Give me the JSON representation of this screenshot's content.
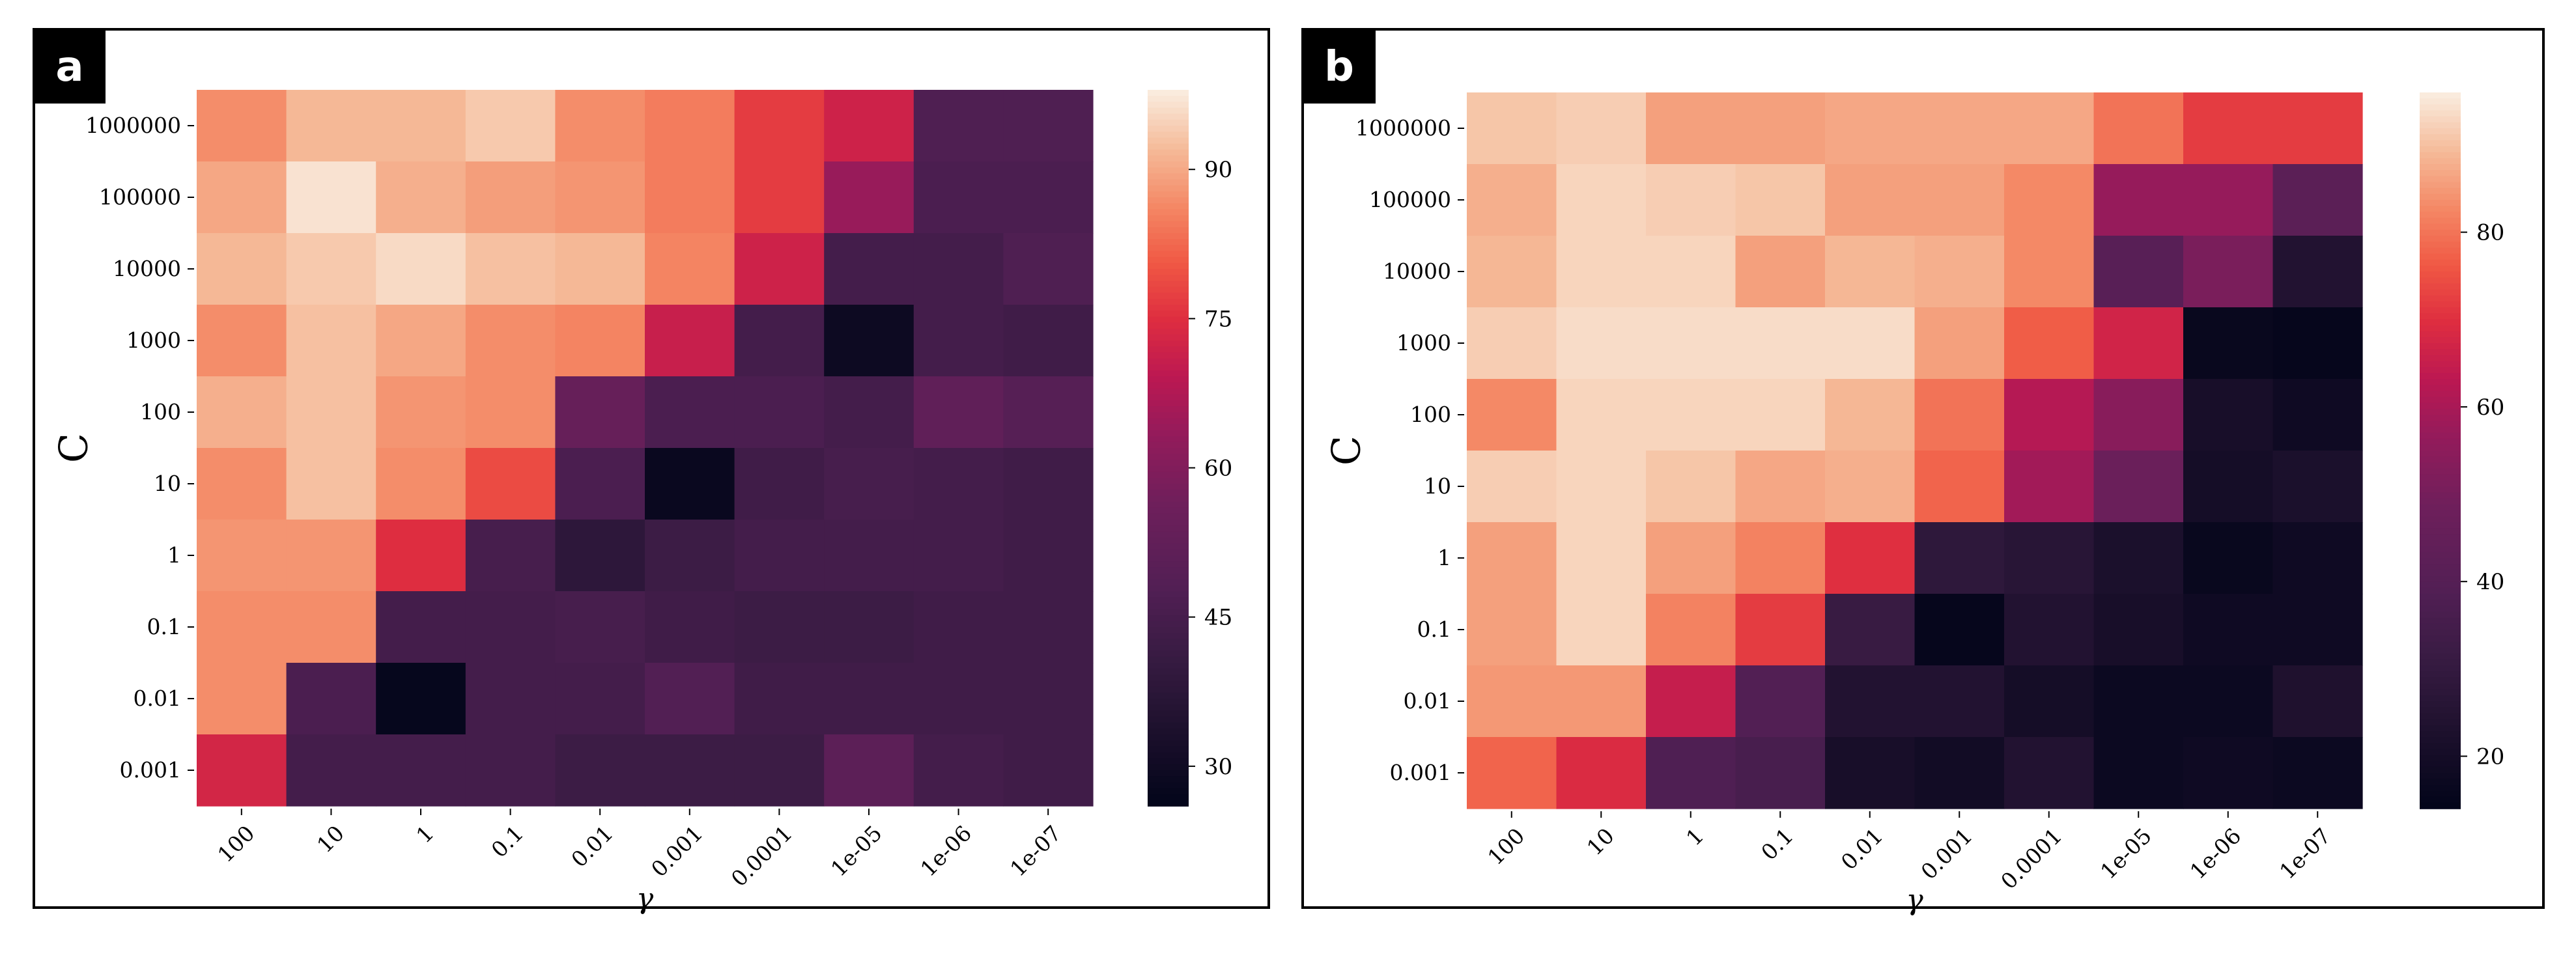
{
  "chart_data": [
    {
      "type": "heatmap",
      "panel_label": "a",
      "xlabel": "γ",
      "ylabel": "C",
      "x_categories": [
        "100",
        "10",
        "1",
        "0.1",
        "0.01",
        "0.001",
        "0.0001",
        "1e-05",
        "1e-06",
        "1e-07"
      ],
      "y_categories": [
        "1000000",
        "100000",
        "10000",
        "1000",
        "100",
        "10",
        "1",
        "0.1",
        "0.01",
        "0.001"
      ],
      "values": [
        [
          87,
          92,
          92,
          94,
          87,
          85,
          77,
          72,
          47,
          47
        ],
        [
          90,
          97,
          91,
          89,
          88,
          85,
          77,
          64,
          46,
          46
        ],
        [
          92,
          94,
          96,
          93,
          92,
          86,
          72,
          44,
          44,
          47
        ],
        [
          87,
          93,
          90,
          87,
          86,
          71,
          44,
          29,
          44,
          43
        ],
        [
          91,
          93,
          88,
          87,
          54,
          46,
          46,
          44,
          52,
          49
        ],
        [
          87,
          93,
          87,
          79,
          46,
          28,
          43,
          45,
          44,
          43
        ],
        [
          88,
          88,
          75,
          45,
          38,
          42,
          44,
          44,
          44,
          43
        ],
        [
          87,
          87,
          44,
          44,
          45,
          43,
          42,
          42,
          43,
          43
        ],
        [
          87,
          46,
          27,
          44,
          44,
          48,
          43,
          43,
          43,
          43
        ],
        [
          73,
          44,
          44,
          44,
          42,
          42,
          42,
          51,
          44,
          43
        ]
      ],
      "colorbar": {
        "min": 26,
        "max": 98,
        "ticks": [
          30,
          45,
          60,
          75,
          90
        ]
      }
    },
    {
      "type": "heatmap",
      "panel_label": "b",
      "xlabel": "γ",
      "ylabel": "C",
      "x_categories": [
        "100",
        "10",
        "1",
        "0.1",
        "0.01",
        "0.001",
        "0.0001",
        "1e-05",
        "1e-06",
        "1e-07"
      ],
      "y_categories": [
        "1000000",
        "100000",
        "10000",
        "1000",
        "100",
        "10",
        "1",
        "0.1",
        "0.01",
        "0.001"
      ],
      "values": [
        [
          91,
          92,
          86,
          86,
          87,
          87,
          87,
          80,
          72,
          72
        ],
        [
          88,
          93,
          92,
          91,
          86,
          86,
          83,
          57,
          57,
          42
        ],
        [
          89,
          93,
          93,
          86,
          89,
          88,
          83,
          41,
          51,
          24
        ],
        [
          92,
          94,
          94,
          94,
          94,
          86,
          77,
          67,
          16,
          15
        ],
        [
          83,
          93,
          93,
          93,
          89,
          80,
          62,
          54,
          21,
          18
        ],
        [
          92,
          93,
          91,
          87,
          88,
          78,
          59,
          47,
          20,
          22
        ],
        [
          86,
          93,
          86,
          82,
          70,
          28,
          26,
          22,
          16,
          18
        ],
        [
          86,
          93,
          82,
          72,
          31,
          15,
          24,
          21,
          18,
          18
        ],
        [
          85,
          85,
          65,
          39,
          24,
          24,
          20,
          17,
          17,
          23
        ],
        [
          78,
          69,
          38,
          36,
          21,
          19,
          24,
          17,
          18,
          17
        ]
      ],
      "colorbar": {
        "min": 14,
        "max": 96,
        "ticks": [
          20,
          40,
          60,
          80
        ]
      }
    }
  ]
}
